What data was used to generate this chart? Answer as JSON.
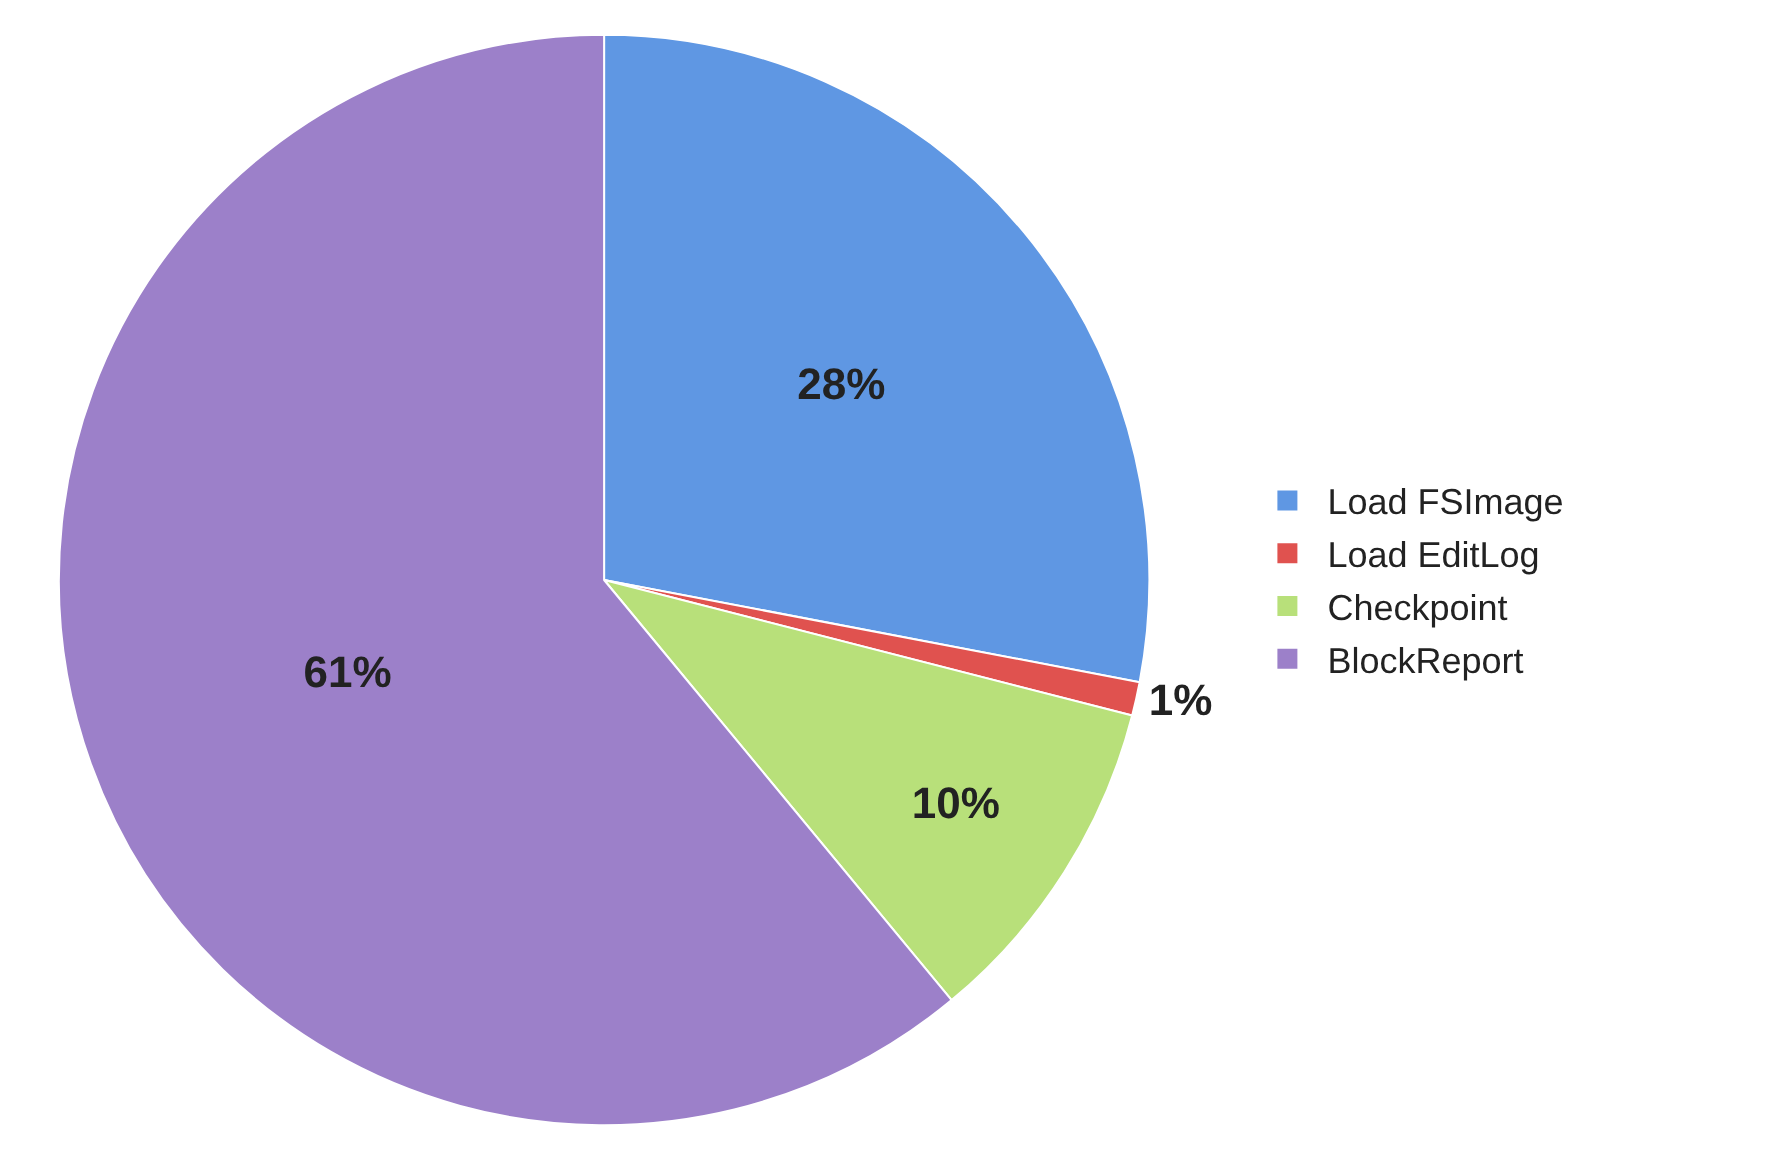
{
  "chart_data": {
    "type": "pie",
    "categories": [
      "Load FSImage",
      "Load EditLog",
      "Checkpoint",
      "BlockReport"
    ],
    "values": [
      28,
      1,
      10,
      61
    ],
    "colors": [
      "#5f97e3",
      "#e0524f",
      "#b8e07a",
      "#9c80c9"
    ],
    "data_labels": true,
    "value_labels": [
      "28%",
      "1%",
      "10%",
      "61%"
    ],
    "legend": "right"
  }
}
